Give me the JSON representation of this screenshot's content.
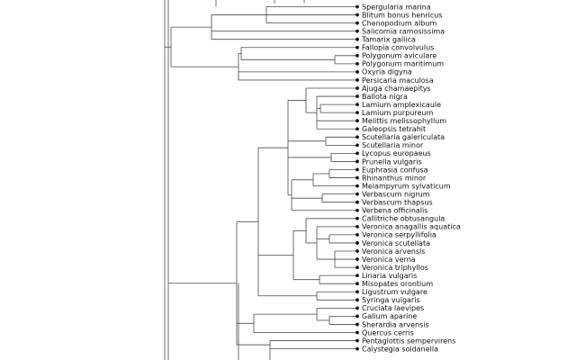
{
  "chart_data": {
    "type": "dendrogram",
    "title": "",
    "partial_top_label": "",
    "leaves": [
      "Spergularia marina",
      "Blitum bonus henricus",
      "Chenopodium album",
      "Salicornia ramosissima",
      "Tamarix gallica",
      "Fallopia convolvulus",
      "Polygonum aviculare",
      "Polygonum maritimum",
      "Oxyria digyna",
      "Persicaria maculosa",
      "Ajuga chamaepitys",
      "Ballota nigra",
      "Lamium amplexicaule",
      "Lamium purpureum",
      "Melittis melissophyllum",
      "Galeopsis tetrahit",
      "Scutellaria galericulata",
      "Scutellaria minor",
      "Lycopus europaeus",
      "Prunella vulgaris",
      "Euphrasia confusa",
      "Rhinanthus minor",
      "Melampyrum sylvaticum",
      "Verbascum nigrum",
      "Verbascum thapsus",
      "Verbena officinalis",
      "Callitriche obtusangula",
      "Veronica anagallis aquatica",
      "Veronica serpyllifolia",
      "Veronica scutellata",
      "Veronica arvensis",
      "Veronica verna",
      "Veronica triphyllos",
      "Linaria vulgaris",
      "Misopates orontium",
      "Ligustrum vulgare",
      "Syringa vulgaris",
      "Cruciata laevipes",
      "Galium aparine",
      "Sherardia arvensis",
      "Quercus cerris",
      "Pentaglottis sempervirens",
      "Calystegia soldanella"
    ]
  }
}
